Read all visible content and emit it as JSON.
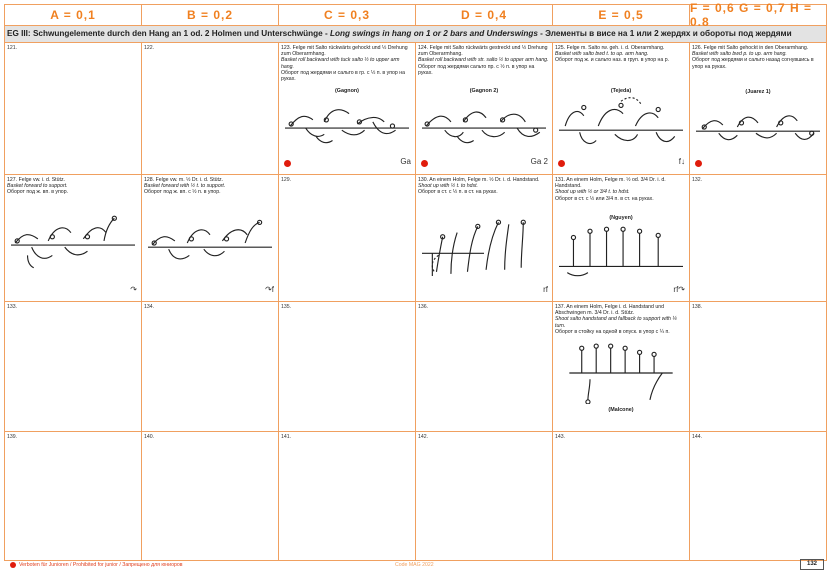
{
  "columns": [
    {
      "label": "A = 0,1"
    },
    {
      "label": "B = 0,2"
    },
    {
      "label": "C = 0,3"
    },
    {
      "label": "D = 0,4"
    },
    {
      "label": "E = 0,5"
    },
    {
      "label": "F = 0,6 G = 0,7 H = 0,8"
    }
  ],
  "group": {
    "code": "EG III:",
    "de": "Schwungelemente durch den Hang an 1 od. 2 Holmen und Unterschwünge - ",
    "en": "Long swings in hang on 1 or 2 bars and Underswings",
    "ru": " - Элементы в висе на 1 или 2 жердях и обороты под жердями"
  },
  "rows": [
    [
      {
        "num": "121."
      },
      {
        "num": "122."
      },
      {
        "num": "123.",
        "lines": [
          "Felge mit Salto rückwärts gehockt und ½ Drehung zum Oberarmhang.",
          "Basket roll backward with tuck salto ½ to upper arm hang.",
          "Оборот под жердями и сальто в гр. с ½ п. в упор на руках."
        ],
        "name": "(Gagnon)",
        "code": "Ga",
        "dot": true
      },
      {
        "num": "124.",
        "lines": [
          "Felge mit Salto rückwärts gestreckt und ½ Drehung zum Oberarmhang.",
          "Basket roll backward with str. salto ½ to upper arm hang.",
          "Оборот под жердями сальто пр. с ½ п. в упор на руках."
        ],
        "name": "(Gagnon 2)",
        "code": "Ga 2",
        "dot": true
      },
      {
        "num": "125.",
        "lines": [
          "Felge m. Salto rw. geh. i. d. Oberarmhang.",
          "Basket with salto bwd t. to up. arm hang.",
          "Оборот под ж. и сальто наз. в груп. в упор на р."
        ],
        "name": "(Tejeda)",
        "code": "f↓",
        "dot": true
      },
      {
        "num": "126.",
        "lines": [
          "Felge mit Salto gehockt in den Oberarmhang.",
          "Basket with salto bwd p. to up. arm hang.",
          "Оборот под жердями и сальто назад согнувшись в упор на руках."
        ],
        "name": "(Juarez 1)",
        "dot": true
      }
    ],
    [
      {
        "num": "127.",
        "lines": [
          "Felge vw. i. d. Stütz.",
          "Basket forward to support.",
          "Оборот под ж. вп. в упор."
        ],
        "code": "↷"
      },
      {
        "num": "128.",
        "lines": [
          "Felge vw. m. ½ Dr. i. d. Stütz.",
          "Basket forward with ½ t. to support.",
          "Оборот под ж. вп. с ½ п. в упор."
        ],
        "code": "↷f"
      },
      {
        "num": "129."
      },
      {
        "num": "130.",
        "lines": [
          "An einem Holm, Felge m. ½ Dr. i. d. Handstand.",
          "Shoot up with ½ t. to hdst.",
          "Оборот в ст. с ½ п. в ст. на руках."
        ],
        "code": "rf"
      },
      {
        "num": "131.",
        "lines": [
          "An einem Holm, Felge m. ½ od. 3/4 Dr. i. d. Handstand.",
          "Shoot up with ½ or 3/4 t. to hdst.",
          "Оборот в ст. с ½ или 3/4 п. в ст. на руках."
        ],
        "name": "(Nguyen)",
        "code": "rf↷"
      },
      {
        "num": "132."
      }
    ],
    [
      {
        "num": "133."
      },
      {
        "num": "134."
      },
      {
        "num": "135."
      },
      {
        "num": "136."
      },
      {
        "num": "137.",
        "lines": [
          "An einem Holm, Felge i. d. Handstand und Abschwingen m. 3/4 Dr. i. d. Stütz.",
          "Shoot salto handstand and fallback to support with ¼ turn.",
          "Оборот в стойку на одной в опуск. в упор с ¼ п."
        ],
        "name": "(Malcone)"
      },
      {
        "num": "138."
      }
    ],
    [
      {
        "num": "139."
      },
      {
        "num": "140."
      },
      {
        "num": "141."
      },
      {
        "num": "142."
      },
      {
        "num": "143."
      },
      {
        "num": "144."
      }
    ]
  ],
  "footer": {
    "note": "Verboten für Junioren / Prohibited for junior / Запрещено для юниоров",
    "center": "Code MAG 2022",
    "page": "132"
  },
  "accent": "#f08020",
  "dot_color": "#e01c0c"
}
